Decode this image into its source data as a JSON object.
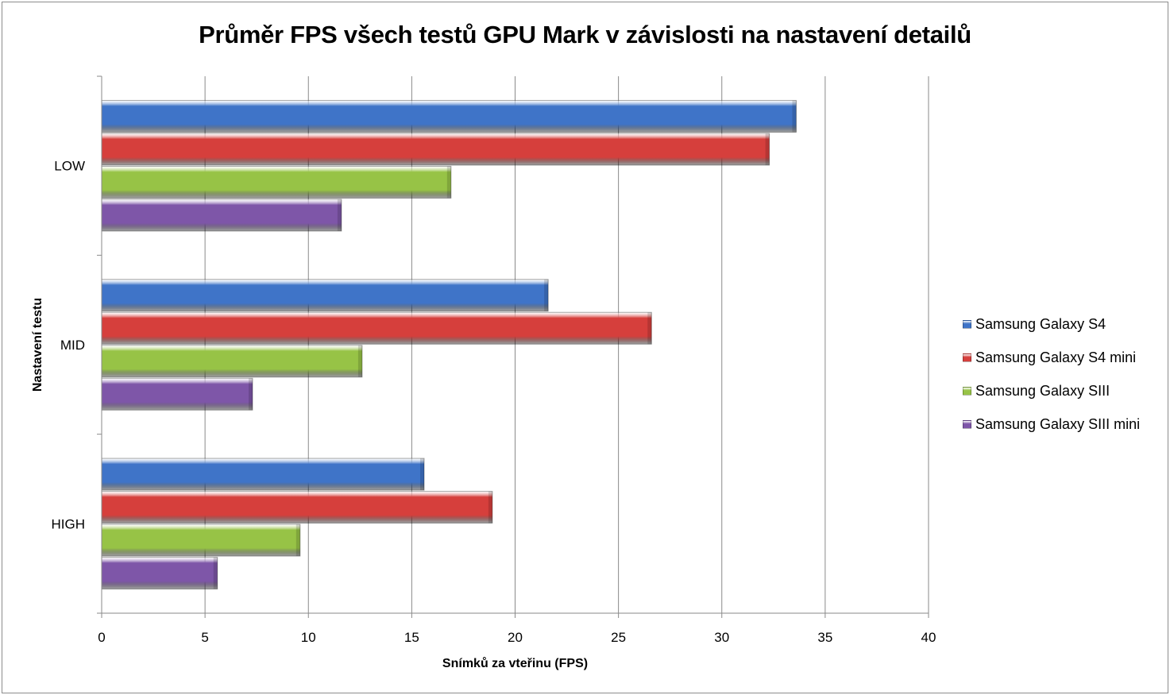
{
  "chart_data": {
    "type": "bar",
    "orientation": "horizontal",
    "title": "Průměr FPS všech testů GPU Mark v závislosti na nastavení detailů",
    "xlabel": "Snímků za vteřinu (FPS)",
    "ylabel": "Nastavení testu",
    "xlim": [
      0,
      40
    ],
    "xticks": [
      "0",
      "5",
      "10",
      "15",
      "20",
      "25",
      "30",
      "35",
      "40"
    ],
    "categories": [
      "LOW",
      "MID",
      "HIGH"
    ],
    "grid": true,
    "legend_position": "right",
    "series": [
      {
        "name": "Samsung Galaxy S4",
        "color": "#3f74c8",
        "values": [
          33.6,
          21.6,
          15.6
        ]
      },
      {
        "name": "Samsung Galaxy S4 mini",
        "color": "#d63f3c",
        "values": [
          32.3,
          26.6,
          18.9
        ]
      },
      {
        "name": "Samsung Galaxy SIII",
        "color": "#97c346",
        "values": [
          16.9,
          12.6,
          9.6
        ]
      },
      {
        "name": "Samsung Galaxy SIII mini",
        "color": "#7e56a8",
        "values": [
          11.6,
          7.3,
          5.6
        ]
      }
    ]
  }
}
